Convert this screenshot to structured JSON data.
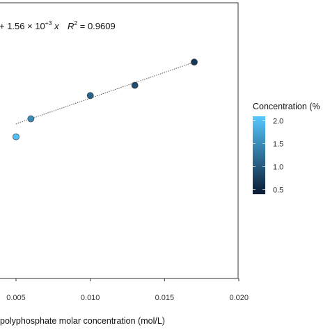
{
  "chart_data": {
    "type": "scatter",
    "title": "",
    "xlabel": "polyphosphate molar concentration (mol/L)",
    "ylabel": "",
    "xlim": [
      0.0,
      0.02
    ],
    "x_ticks": [
      "0.005",
      "0.010",
      "0.015",
      "0.020"
    ],
    "grid": false,
    "annotation": {
      "prefix": "+ 1.56 × 10",
      "exponent": "+3",
      "var": " x",
      "r2_label": "R",
      "r2_exp": "2",
      "r2_value": " = 0.9609"
    },
    "legend": {
      "title": "Concentration (%",
      "ticks": [
        "2.0",
        "1.5",
        "1.0",
        "0.5"
      ],
      "tick_values": [
        2.0,
        1.5,
        1.0,
        0.5
      ],
      "range": [
        0.4,
        2.1
      ],
      "colors": {
        "low": "#0a1a33",
        "high": "#56c8ff"
      },
      "placement": "right"
    },
    "points": [
      {
        "x": 0.005,
        "y": 0.55,
        "c": 2.0
      },
      {
        "x": 0.006,
        "y": 0.62,
        "c": 1.5
      },
      {
        "x": 0.01,
        "y": 0.71,
        "c": 1.1
      },
      {
        "x": 0.013,
        "y": 0.75,
        "c": 0.9
      },
      {
        "x": 0.017,
        "y": 0.84,
        "c": 0.7
      }
    ],
    "fit_line": {
      "x": [
        0.005,
        0.017
      ],
      "y": [
        0.6,
        0.84
      ]
    }
  }
}
